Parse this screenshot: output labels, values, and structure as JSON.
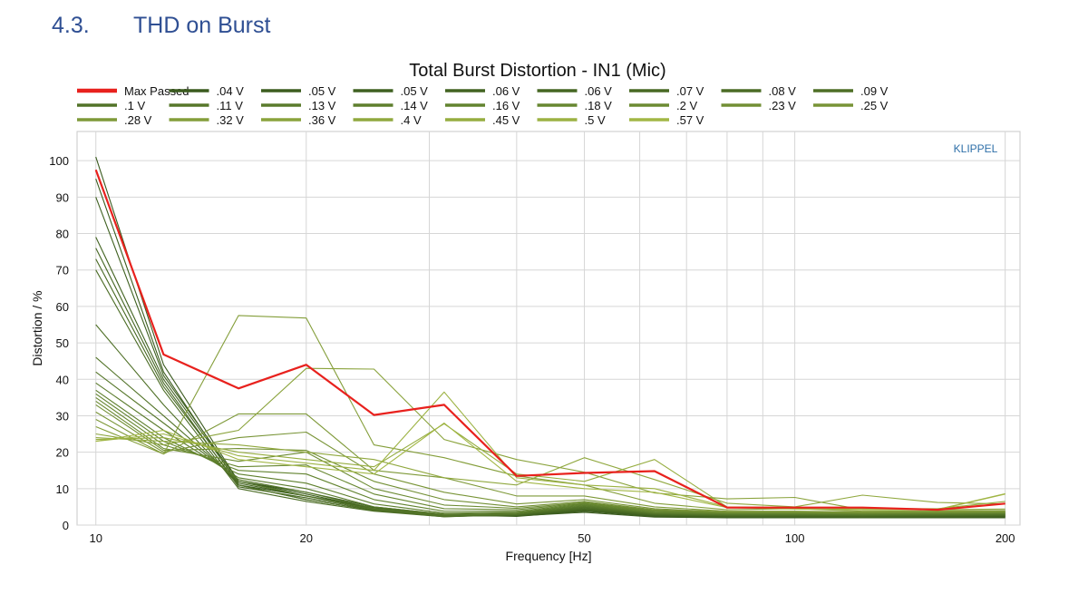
{
  "heading": {
    "number": "4.3.",
    "title": "THD on Burst"
  },
  "chart_data": {
    "type": "line",
    "title": "Total Burst Distortion - IN1 (Mic)",
    "xlabel": "Frequency [Hz]",
    "ylabel": "Distortion / %",
    "watermark": "KLIPPEL",
    "xscale": "log",
    "xlim": [
      9.4,
      210
    ],
    "ylim": [
      0,
      108
    ],
    "xticks": [
      10,
      20,
      50,
      100,
      200
    ],
    "yticks": [
      0,
      10,
      20,
      30,
      40,
      50,
      60,
      70,
      80,
      90,
      100
    ],
    "grid": true,
    "legend_position": "top",
    "x": [
      10,
      12.5,
      16,
      20,
      25,
      31.5,
      40,
      50,
      63,
      80,
      100,
      125,
      160,
      200
    ],
    "series": [
      {
        "name": "Max Passed",
        "color": "#e8211d",
        "values": [
          97.5,
          46.8,
          37.5,
          44,
          30.2,
          33,
          13.5,
          14.3,
          14.8,
          4.8,
          4.8,
          4.8,
          4.2,
          5.9
        ]
      },
      {
        "name": ".04 V",
        "color": "#3a5a1e",
        "values": [
          101,
          44,
          12,
          9,
          5,
          3,
          2.5,
          3.5,
          2.2,
          2,
          2,
          2,
          2,
          2
        ]
      },
      {
        "name": ".05 V",
        "color": "#3c5d1f",
        "values": [
          95,
          42,
          11,
          8,
          4.8,
          2.8,
          2.4,
          3.8,
          2.4,
          2.1,
          2.1,
          2,
          2.1,
          2.2
        ]
      },
      {
        "name": ".05 V",
        "color": "#3f6020",
        "values": [
          90,
          41,
          12,
          8.5,
          4.5,
          2.6,
          2.5,
          4,
          2.5,
          2.2,
          2.2,
          2.1,
          2.2,
          2.3
        ]
      },
      {
        "name": ".06 V",
        "color": "#426321",
        "values": [
          79,
          40,
          11.5,
          8,
          4.5,
          2.5,
          2.6,
          4.2,
          2.6,
          2.3,
          2.3,
          2.2,
          2.3,
          2.4
        ]
      },
      {
        "name": ".06 V",
        "color": "#456622",
        "values": [
          76,
          39,
          10.5,
          7.5,
          4.2,
          2.4,
          2.7,
          4.3,
          2.7,
          2.4,
          2.4,
          2.3,
          2.4,
          2.5
        ]
      },
      {
        "name": ".07 V",
        "color": "#486923",
        "values": [
          73,
          38,
          11,
          7,
          4,
          2.4,
          2.8,
          4.5,
          2.8,
          2.5,
          2.5,
          2.4,
          2.5,
          2.6
        ]
      },
      {
        "name": ".08 V",
        "color": "#4b6c25",
        "values": [
          70,
          37,
          10,
          6.5,
          3.8,
          2.3,
          2.8,
          4.6,
          2.9,
          2.6,
          2.6,
          2.5,
          2.6,
          2.7
        ]
      },
      {
        "name": ".09 V",
        "color": "#4e6f26",
        "values": [
          55,
          33,
          11,
          7,
          4,
          2.3,
          2.9,
          4.8,
          3,
          2.7,
          2.7,
          2.6,
          2.7,
          2.8
        ]
      },
      {
        "name": ".1 V",
        "color": "#527328",
        "values": [
          46,
          30,
          12,
          8,
          4.3,
          2.5,
          3,
          5,
          3.1,
          2.8,
          2.8,
          2.7,
          2.8,
          2.9
        ]
      },
      {
        "name": ".11 V",
        "color": "#56772a",
        "values": [
          42,
          28,
          12.5,
          9,
          4.6,
          2.7,
          3.1,
          5.2,
          3.2,
          2.9,
          2.9,
          2.8,
          2.9,
          3
        ]
      },
      {
        "name": ".13 V",
        "color": "#5a7b2c",
        "values": [
          39,
          26,
          13,
          10,
          5,
          3,
          3.3,
          5.4,
          3.3,
          3,
          3,
          2.9,
          3,
          3.1
        ]
      },
      {
        "name": ".14 V",
        "color": "#5e7f2d",
        "values": [
          37,
          24,
          14,
          11.5,
          5.8,
          3.3,
          3.5,
          5.6,
          3.4,
          3.1,
          3.1,
          3,
          3.1,
          3.2
        ]
      },
      {
        "name": ".16 V",
        "color": "#62832f",
        "values": [
          36,
          23,
          15,
          14,
          7,
          3.8,
          3.8,
          5.8,
          3.6,
          3.2,
          3.2,
          3.1,
          3.2,
          3.3
        ]
      },
      {
        "name": ".18 V",
        "color": "#678730",
        "values": [
          35,
          22,
          16,
          16.5,
          8.5,
          4.5,
          4.2,
          6,
          3.8,
          3.3,
          3.3,
          3.2,
          3.3,
          3.4
        ]
      },
      {
        "name": ".2 V",
        "color": "#6c8b32",
        "values": [
          34,
          21,
          17.5,
          20,
          10,
          5.5,
          4.6,
          6.2,
          4,
          3.4,
          3.4,
          3.3,
          3.4,
          3.5
        ]
      },
      {
        "name": ".23 V",
        "color": "#728f34",
        "values": [
          33,
          20.5,
          21,
          20.5,
          12,
          7,
          5,
          6.5,
          4.2,
          3.5,
          3.5,
          3.4,
          3.5,
          3.6
        ]
      },
      {
        "name": ".25 V",
        "color": "#789436",
        "values": [
          31,
          20,
          24,
          25.5,
          14,
          9,
          5.8,
          7,
          4.5,
          3.6,
          3.6,
          3.5,
          3.6,
          3.7
        ]
      },
      {
        "name": ".28 V",
        "color": "#7e9938",
        "values": [
          29,
          19.5,
          30.5,
          30.5,
          15,
          13,
          8,
          8,
          5,
          3.8,
          3.8,
          3.6,
          3.7,
          3.8
        ]
      },
      {
        "name": ".32 V",
        "color": "#849e3a",
        "values": [
          27,
          19.5,
          57.5,
          56.8,
          22,
          18.5,
          13.5,
          11,
          6,
          4.2,
          4.5,
          3.8,
          3.9,
          4
        ]
      },
      {
        "name": ".36 V",
        "color": "#8aa33c",
        "values": [
          25,
          22,
          26,
          43,
          42.8,
          23.5,
          18,
          14.5,
          8.8,
          7.2,
          7.6,
          4.2,
          4.2,
          4.4
        ]
      },
      {
        "name": ".4 V",
        "color": "#90a83e",
        "values": [
          24,
          23,
          22,
          20,
          18,
          13,
          11,
          18.5,
          12.5,
          6,
          5,
          8.2,
          6.2,
          5.8
        ]
      },
      {
        "name": ".45 V",
        "color": "#96ad40",
        "values": [
          23.5,
          24,
          20,
          18,
          16,
          27.8,
          14,
          12,
          18,
          5,
          4.8,
          4.5,
          4.5,
          6.5
        ]
      },
      {
        "name": ".5 V",
        "color": "#9cb242",
        "values": [
          23,
          25,
          19,
          17,
          15,
          36.5,
          13,
          11,
          10,
          5,
          4.5,
          4.3,
          4.3,
          8.6
        ]
      },
      {
        "name": ".57 V",
        "color": "#a2b745",
        "values": [
          23,
          26,
          18,
          16,
          14,
          28,
          12,
          10,
          9,
          4.8,
          4.4,
          4.2,
          4.2,
          8.5
        ]
      }
    ]
  }
}
